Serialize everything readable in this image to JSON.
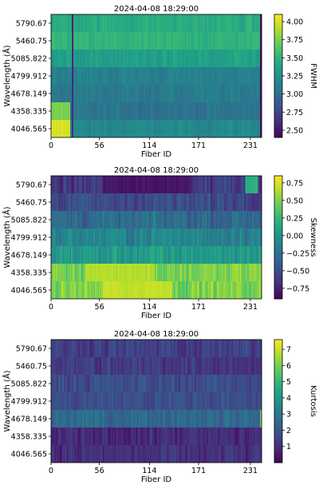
{
  "chart_data": [
    {
      "type": "heatmap",
      "title": "2024-04-08 18:29:00",
      "xlabel": "Fiber ID",
      "ylabel": "Wavelength (Å)",
      "x_ticks": [
        "0",
        "56",
        "114",
        "171",
        "231"
      ],
      "x_tick_values": [
        0,
        56,
        114,
        171,
        231
      ],
      "x_range": [
        0,
        244
      ],
      "y_categories": [
        "4046.565",
        "4358.335",
        "4678.149",
        "4799.912",
        "5085.822",
        "5460.75",
        "5790.67"
      ],
      "colorbar_label": "FWHM",
      "colorbar_ticks": [
        "2.50",
        "2.75",
        "3.00",
        "3.25",
        "3.50",
        "3.75",
        "4.00"
      ],
      "colorbar_tick_values": [
        2.5,
        2.75,
        3.0,
        3.25,
        3.5,
        3.75,
        4.0
      ],
      "vmin": 2.4,
      "vmax": 4.1,
      "colormap": "viridis",
      "row_levels": [
        3.2,
        3.05,
        3.1,
        3.15,
        3.35,
        3.5,
        3.45
      ],
      "features": [
        {
          "row": "4046.565",
          "x_from": 0,
          "x_to": 22,
          "value": 4.0
        },
        {
          "row": "4358.335",
          "x_from": 0,
          "x_to": 22,
          "value": 3.75
        },
        {
          "row": "all",
          "x_from": 24,
          "x_to": 26,
          "value": 2.6
        },
        {
          "row": "all",
          "x_from": 242,
          "x_to": 244,
          "value": 2.5
        }
      ]
    },
    {
      "type": "heatmap",
      "title": "2024-04-08 18:29:00",
      "xlabel": "Fiber ID",
      "ylabel": "Wavelength (Å)",
      "x_ticks": [
        "0",
        "56",
        "114",
        "171",
        "231"
      ],
      "x_tick_values": [
        0,
        56,
        114,
        171,
        231
      ],
      "x_range": [
        0,
        244
      ],
      "y_categories": [
        "4046.565",
        "4358.335",
        "4678.149",
        "4799.912",
        "5085.822",
        "5460.75",
        "5790.67"
      ],
      "colorbar_label": "Skewness",
      "colorbar_ticks": [
        "−0.75",
        "−0.50",
        "−0.25",
        "0.00",
        "0.25",
        "0.50",
        "0.75"
      ],
      "colorbar_tick_values": [
        -0.75,
        -0.5,
        -0.25,
        0.0,
        0.25,
        0.5,
        0.75
      ],
      "vmin": -0.9,
      "vmax": 0.85,
      "colormap": "viridis",
      "row_levels": [
        0.5,
        0.5,
        0.05,
        -0.1,
        -0.3,
        -0.5,
        -0.6
      ],
      "features": [
        {
          "row": "4046.565",
          "x_from": 60,
          "x_to": 140,
          "value": 0.7
        },
        {
          "row": "4358.335",
          "x_from": 40,
          "x_to": 120,
          "value": 0.65
        },
        {
          "row": "5790.67",
          "x_from": 60,
          "x_to": 160,
          "value": -0.8
        },
        {
          "row": "5790.67",
          "x_from": 225,
          "x_to": 240,
          "value": 0.2
        }
      ]
    },
    {
      "type": "heatmap",
      "title": "2024-04-08 18:29:00",
      "xlabel": "Fiber ID",
      "ylabel": "Wavelength (Å)",
      "x_ticks": [
        "0",
        "56",
        "114",
        "171",
        "231"
      ],
      "x_tick_values": [
        0,
        56,
        114,
        171,
        231
      ],
      "x_range": [
        0,
        244
      ],
      "y_categories": [
        "4046.565",
        "4358.335",
        "4678.149",
        "4799.912",
        "5085.822",
        "5460.75",
        "5790.67"
      ],
      "colorbar_label": "Kurtosis",
      "colorbar_ticks": [
        "1",
        "2",
        "3",
        "4",
        "5",
        "6",
        "7"
      ],
      "colorbar_tick_values": [
        1,
        2,
        3,
        4,
        5,
        6,
        7
      ],
      "vmin": 0,
      "vmax": 7.6,
      "colormap": "viridis",
      "row_levels": [
        1.0,
        0.9,
        2.6,
        1.8,
        1.8,
        1.3,
        1.4
      ],
      "features": [
        {
          "row": "4678.149",
          "x_from": 242,
          "x_to": 244,
          "value": 6.0
        }
      ]
    }
  ]
}
